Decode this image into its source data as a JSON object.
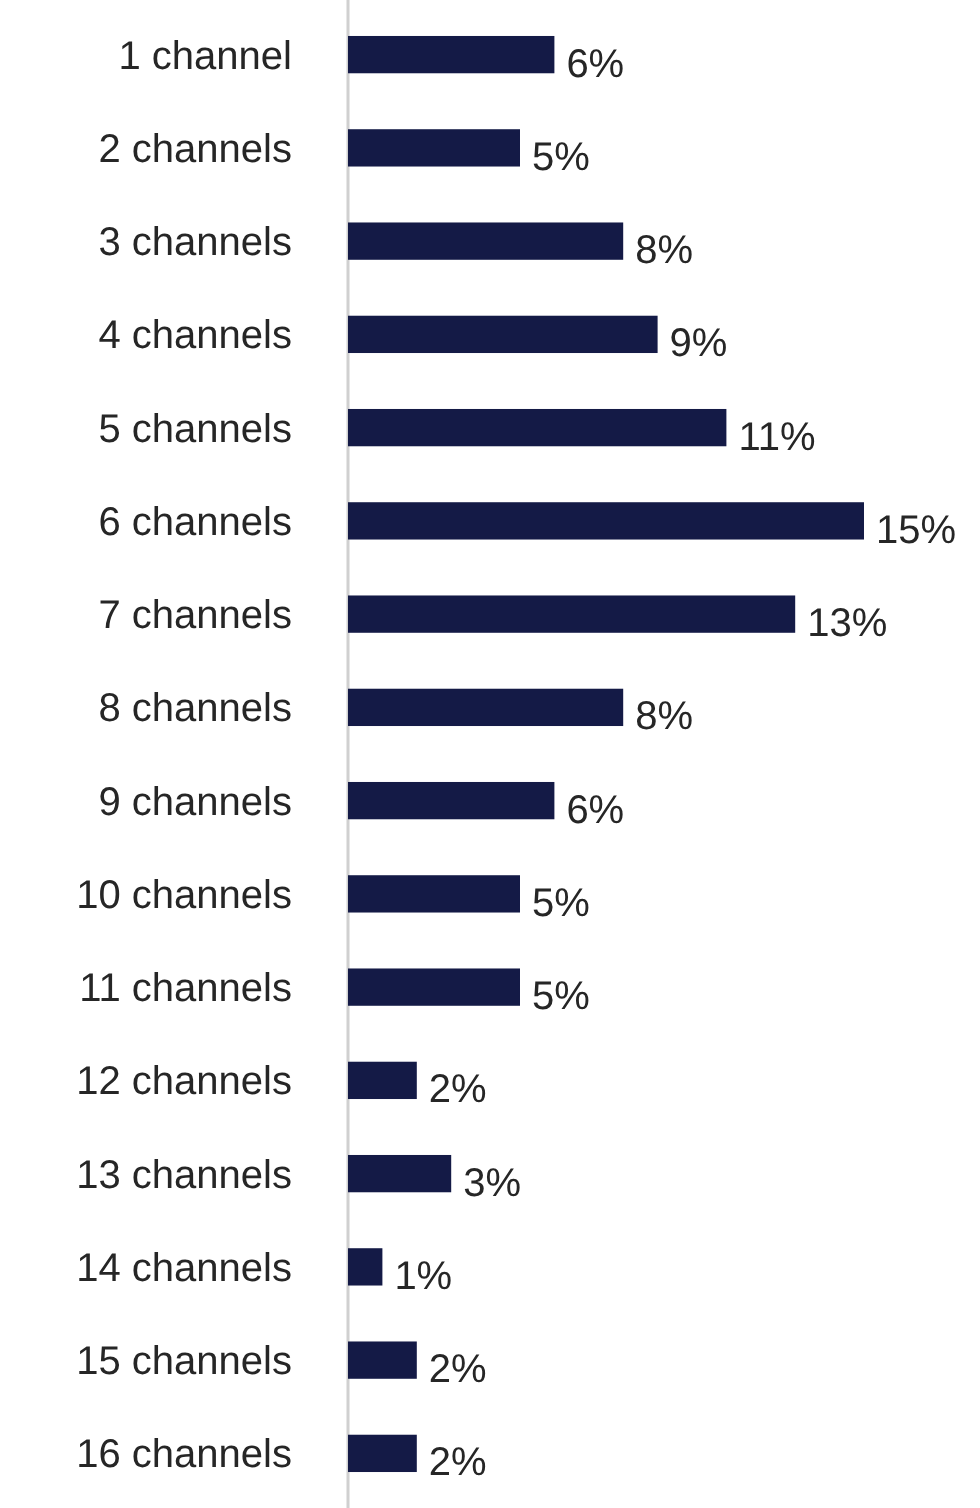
{
  "chart_data": {
    "type": "bar",
    "orientation": "horizontal",
    "categories": [
      "1 channel",
      "2 channels",
      "3 channels",
      "4 channels",
      "5 channels",
      "6 channels",
      "7 channels",
      "8 channels",
      "9 channels",
      "10 channels",
      "11 channels",
      "12 channels",
      "13 channels",
      "14 channels",
      "15 channels",
      "16 channels"
    ],
    "values": [
      6,
      5,
      8,
      9,
      11,
      15,
      13,
      8,
      6,
      5,
      5,
      2,
      3,
      1,
      2,
      2
    ],
    "value_labels": [
      "6%",
      "5%",
      "8%",
      "9%",
      "11%",
      "15%",
      "13%",
      "8%",
      "6%",
      "5%",
      "5%",
      "2%",
      "3%",
      "1%",
      "2%",
      "2%"
    ],
    "color": "#141a46"
  }
}
